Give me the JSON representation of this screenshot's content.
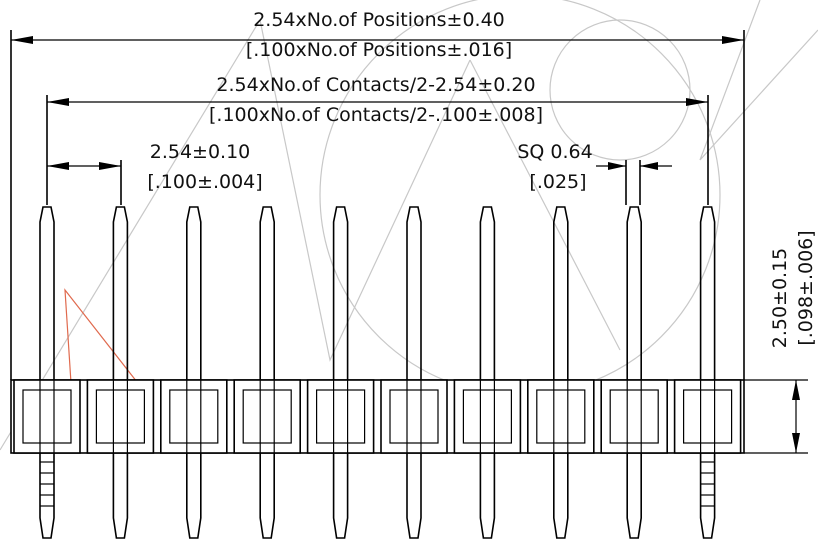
{
  "dimensions": {
    "overall_metric": "2.54xNo.of Positions±0.40",
    "overall_imperial": "[.100xNo.of Positions±.016]",
    "contacts_metric": "2.54xNo.of Contacts/2-2.54±0.20",
    "contacts_imperial": "[.100xNo.of Contacts/2-.100±.008]",
    "pitch_metric": "2.54±0.10",
    "pitch_imperial": "[.100±.004]",
    "square_metric": "SQ 0.64",
    "square_imperial": "[.025]",
    "height_metric": "2.50±0.15",
    "height_imperial": "[.098±.006]"
  },
  "pin_count": 10,
  "colors": {
    "line": "#000000",
    "watermark": "#c8c8c8",
    "watermark_accent": "#e06a4e",
    "background": "#ffffff"
  }
}
